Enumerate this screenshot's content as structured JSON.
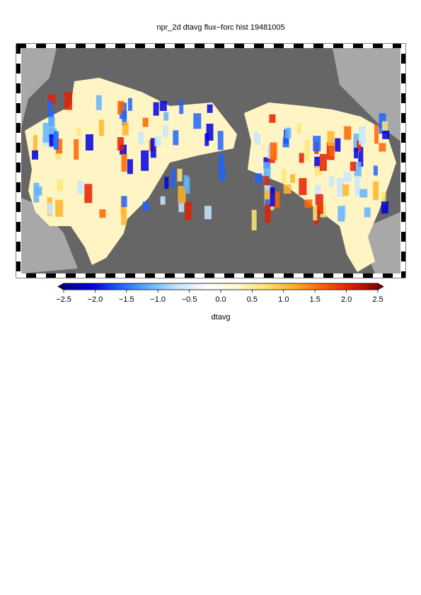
{
  "title": "npr_2d dtavg flux−forc hist 19481005",
  "colorbar": {
    "label": "dtavg",
    "lim": [
      -2.5,
      2.5
    ],
    "colors": [
      "#00008b",
      "#0000e0",
      "#1e64ff",
      "#64b4ff",
      "#c8e6ff",
      "#ffffff",
      "#fffad2",
      "#ffe678",
      "#ffb428",
      "#ff6400",
      "#e61e00",
      "#8b0000"
    ],
    "ticks": [
      {
        "value": -2.5,
        "label": "−2.5"
      },
      {
        "value": -2.0,
        "label": "−2.0"
      },
      {
        "value": -1.5,
        "label": "−1.5"
      },
      {
        "value": -1.0,
        "label": "−1.0"
      },
      {
        "value": -0.5,
        "label": "−0.5"
      },
      {
        "value": 0.0,
        "label": "0.0"
      },
      {
        "value": 0.5,
        "label": "0.5"
      },
      {
        "value": 1.0,
        "label": "1.0"
      },
      {
        "value": 1.5,
        "label": "1.5"
      },
      {
        "value": 2.0,
        "label": "2.0"
      },
      {
        "value": 2.5,
        "label": "2.5"
      }
    ]
  }
}
